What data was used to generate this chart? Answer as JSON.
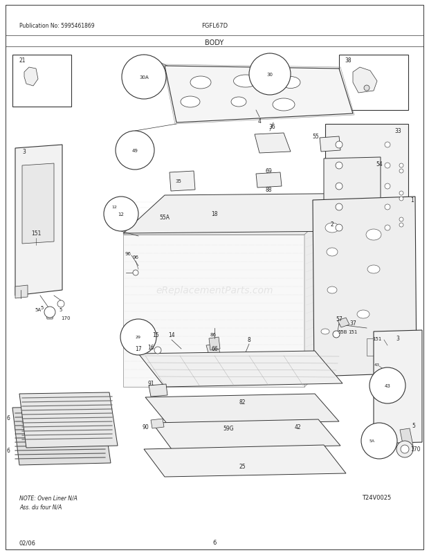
{
  "title": "BODY",
  "pub_no": "Publication No: 5995461869",
  "model": "FGFL67D",
  "date": "02/06",
  "page": "6",
  "diagram_id": "T24V0025",
  "note_line1": "NOTE: Oven Liner N/A",
  "note_line2": "Ass. du four N/A",
  "bg_color": "#ffffff",
  "line_color": "#333333",
  "text_color": "#222222",
  "watermark": "eReplacementParts.com",
  "fig_w": 6.2,
  "fig_h": 8.03,
  "dpi": 100
}
